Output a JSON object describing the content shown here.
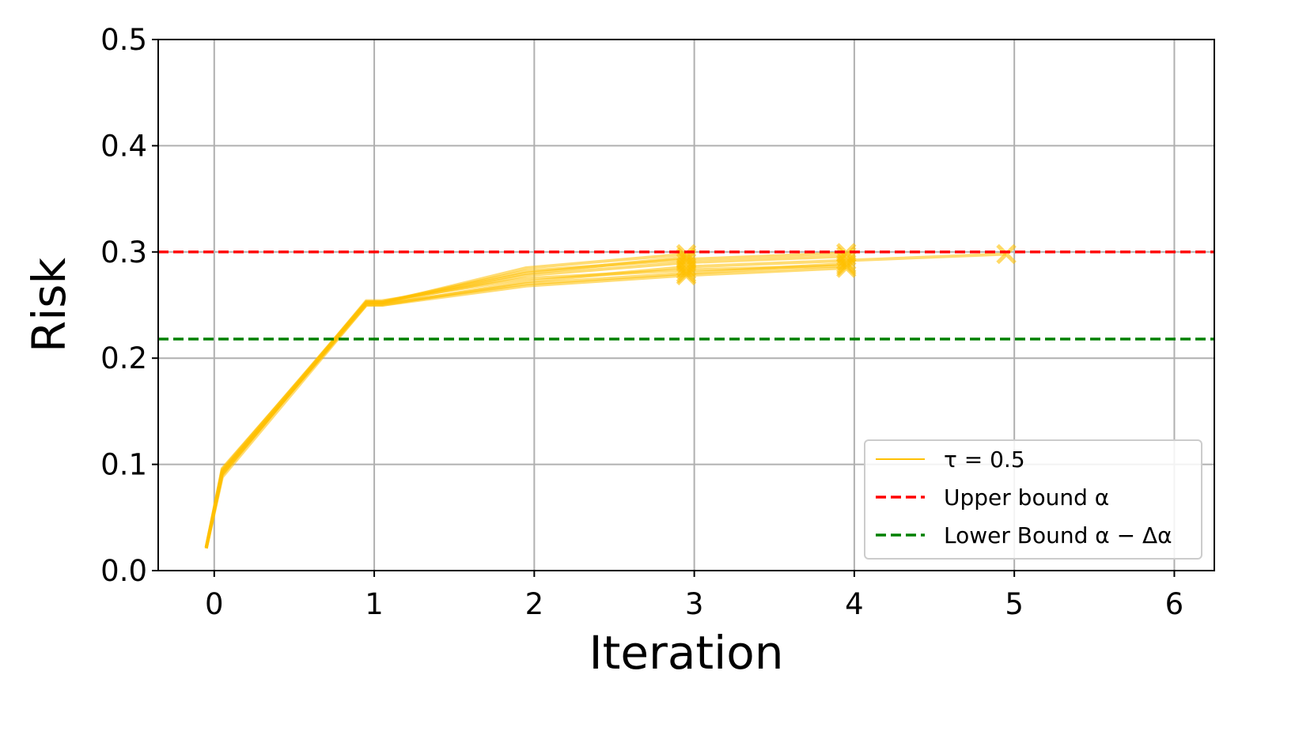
{
  "chart_data": {
    "type": "line",
    "xlabel": "Iteration",
    "ylabel": "Risk",
    "xlim": [
      -0.35,
      6.25
    ],
    "ylim": [
      0.0,
      0.5
    ],
    "xticks": [
      "0",
      "1",
      "2",
      "3",
      "4",
      "5",
      "6"
    ],
    "yticks": [
      "0.0",
      "0.1",
      "0.2",
      "0.3",
      "0.4",
      "0.5"
    ],
    "grid": true,
    "legend_placement": "lower-right",
    "series": [
      {
        "name": "τ = 0.5",
        "color": "#ffc000",
        "lines": [
          {
            "x": [
              -0.05,
              0.05,
              0.95,
              1.05,
              1.95,
              2.95,
              3.95,
              4.95
            ],
            "y": [
              0.021,
              0.088,
              0.25,
              0.25,
              0.272,
              0.286,
              0.292,
              0.298
            ]
          },
          {
            "x": [
              -0.05,
              0.05,
              0.95,
              1.05,
              1.95,
              2.95,
              3.95
            ],
            "y": [
              0.022,
              0.091,
              0.252,
              0.252,
              0.278,
              0.29,
              0.296
            ]
          },
          {
            "x": [
              -0.05,
              0.05,
              0.95,
              1.05,
              1.95,
              2.95,
              3.95
            ],
            "y": [
              0.021,
              0.094,
              0.253,
              0.253,
              0.282,
              0.293,
              0.299
            ]
          },
          {
            "x": [
              -0.05,
              0.05,
              0.95,
              1.05,
              1.95,
              2.95,
              3.95
            ],
            "y": [
              0.022,
              0.096,
              0.251,
              0.251,
              0.27,
              0.28,
              0.289
            ]
          },
          {
            "x": [
              -0.05,
              0.05,
              0.95,
              1.05,
              1.95,
              2.95,
              3.95
            ],
            "y": [
              0.021,
              0.09,
              0.254,
              0.254,
              0.275,
              0.283,
              0.287
            ]
          },
          {
            "x": [
              -0.05,
              0.05,
              0.95,
              1.05,
              1.95,
              2.95,
              3.95
            ],
            "y": [
              0.022,
              0.093,
              0.25,
              0.25,
              0.268,
              0.278,
              0.285
            ]
          },
          {
            "x": [
              -0.05,
              0.05,
              0.95,
              1.05,
              1.95,
              2.95
            ],
            "y": [
              0.021,
              0.092,
              0.252,
              0.252,
              0.285,
              0.298
            ]
          },
          {
            "x": [
              -0.05,
              0.05,
              0.95,
              1.05,
              1.95,
              2.95
            ],
            "y": [
              0.022,
              0.095,
              0.253,
              0.253,
              0.28,
              0.295
            ]
          }
        ],
        "end_markers": [
          {
            "x": 2.95,
            "y": 0.286
          },
          {
            "x": 2.95,
            "y": 0.29
          },
          {
            "x": 2.95,
            "y": 0.293
          },
          {
            "x": 2.95,
            "y": 0.28
          },
          {
            "x": 2.95,
            "y": 0.283
          },
          {
            "x": 2.95,
            "y": 0.278
          },
          {
            "x": 2.95,
            "y": 0.298
          },
          {
            "x": 2.95,
            "y": 0.295
          },
          {
            "x": 3.95,
            "y": 0.292
          },
          {
            "x": 3.95,
            "y": 0.296
          },
          {
            "x": 3.95,
            "y": 0.299
          },
          {
            "x": 3.95,
            "y": 0.289
          },
          {
            "x": 3.95,
            "y": 0.287
          },
          {
            "x": 3.95,
            "y": 0.285
          },
          {
            "x": 4.95,
            "y": 0.298
          }
        ]
      }
    ],
    "hlines": [
      {
        "name": "Upper bound α",
        "y": 0.3,
        "color": "#ff0000",
        "style": "dashed"
      },
      {
        "name": "Lower Bound α − Δα",
        "y": 0.218,
        "color": "#008000",
        "style": "dashed"
      }
    ]
  }
}
